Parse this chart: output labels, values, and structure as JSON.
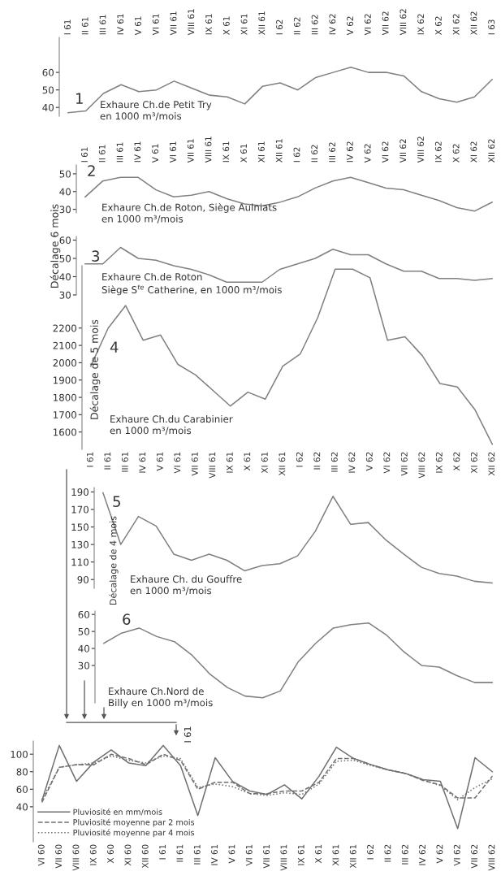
{
  "chart_data": [
    {
      "type": "line",
      "title": "Exhaure Ch.de Petit Try\nen 1000 m³/mois",
      "annotations": [
        "1"
      ],
      "categories": [
        "I 61",
        "II 61",
        "III 61",
        "IV 61",
        "V 61",
        "VI 61",
        "VII 61",
        "VIII 61",
        "IX 61",
        "X 61",
        "XI 61",
        "XII 61",
        "I 62",
        "II 62",
        "III 62",
        "IV 62",
        "V 62",
        "VI 62",
        "VII 62",
        "VIII 62",
        "IX 62",
        "X 62",
        "XI 62",
        "XII 62",
        "I 63"
      ],
      "series": [
        {
          "color": "#808080",
          "values": [
            37,
            38,
            48,
            53,
            49,
            50,
            55,
            51,
            47,
            46,
            42,
            52,
            54,
            50,
            57,
            60,
            63,
            60,
            60,
            58,
            49,
            45,
            43,
            46,
            56
          ]
        }
      ],
      "ylim": [
        35,
        80
      ],
      "yticks": [
        40,
        50,
        60
      ]
    },
    {
      "type": "line",
      "title": "Exhaure Ch.de Roton, Siège Aulniats\nen 1000 m³/mois",
      "annotations": [
        "2",
        "Décalage 6 mois"
      ],
      "categories": [
        "I 61",
        "II 61",
        "III 61",
        "IV 61",
        "V 61",
        "VI 61",
        "VII 61",
        "VIII 61",
        "IX 61",
        "X 61",
        "XI 61",
        "XII 61",
        "I 62",
        "II 62",
        "III 62",
        "IV 62",
        "V 62",
        "VI 62",
        "VII 62",
        "VIII 62",
        "IX 62",
        "X 62",
        "XI 62",
        "XII 62"
      ],
      "series": [
        {
          "color": "#808080",
          "values": [
            37,
            46,
            48,
            48,
            41,
            37,
            38,
            40,
            36,
            33,
            32,
            34,
            37,
            42,
            46,
            48,
            45,
            42,
            41,
            38,
            35,
            31,
            29,
            34
          ]
        }
      ],
      "ylim": [
        28,
        55
      ],
      "yticks": [
        30,
        40,
        50
      ]
    },
    {
      "type": "line",
      "title": "Exhaure Ch.de Roton\nSiège S$^{te}$ Catherine, en 1000 m³/mois",
      "annotations": [
        "3"
      ],
      "categories": [
        null,
        null,
        null,
        null,
        null,
        null,
        null,
        null,
        null,
        null,
        null,
        null,
        null,
        null,
        null,
        null,
        null,
        null,
        null,
        null,
        null,
        null,
        null,
        null
      ],
      "series": [
        {
          "color": "#808080",
          "values": [
            47,
            47,
            56,
            50,
            49,
            46,
            44,
            41,
            37,
            37,
            37,
            44,
            47,
            50,
            55,
            52,
            52,
            47,
            43,
            43,
            39,
            39,
            38,
            39
          ]
        }
      ],
      "ylim": [
        30,
        62
      ],
      "yticks": [
        30,
        40,
        50,
        60
      ],
      "tick_labels": "y"
    },
    {
      "type": "line",
      "title": "Exhaure Ch.du Carabinier\nen 1000 m³/mois",
      "annotations": [
        "4",
        "Décalage de 5 mois"
      ],
      "categories": [
        "I 61",
        "II 61",
        "III 61",
        "IV 61",
        "V 61",
        "VI 61",
        "VII 61",
        "VIII 61",
        "IX 61",
        "X 61",
        "XI 61",
        "XII 61",
        "I 62",
        "II 62",
        "III 62",
        "IV 62",
        "V 62",
        "VI 62",
        "VII 62",
        "VIII 62",
        "IX 62",
        "X 62",
        "XI 62",
        "XII 62"
      ],
      "series": [
        {
          "color": "#808080",
          "values": [
            1980,
            2200,
            2330,
            2130,
            2160,
            1990,
            1930,
            1840,
            1750,
            1830,
            1790,
            1980,
            2050,
            2260,
            2540,
            2540,
            2490,
            2130,
            2150,
            2040,
            1880,
            1860,
            1730,
            1530
          ]
        }
      ],
      "ylim": [
        1500,
        2560
      ],
      "yticks": [
        1600,
        1700,
        1800,
        1900,
        2000,
        2100,
        2200
      ]
    },
    {
      "type": "line",
      "title": "Exhaure Ch. du Gouffre\nen 1000 m³/mois",
      "annotations": [
        "5",
        "Décalage de 4 mois"
      ],
      "categories": [
        null,
        null,
        null,
        null,
        null,
        null,
        null,
        null,
        null,
        null,
        null,
        null,
        null,
        null,
        null,
        null,
        null,
        null,
        null,
        null,
        null,
        null,
        null
      ],
      "series": [
        {
          "color": "#808080",
          "values": [
            189,
            130,
            162,
            151,
            119,
            112,
            119,
            112,
            100,
            106,
            108,
            117,
            145,
            185,
            153,
            155,
            135,
            119,
            104,
            97,
            94,
            88,
            86
          ]
        }
      ],
      "ylim": [
        80,
        195
      ],
      "yticks": [
        90,
        110,
        130,
        150,
        170,
        190
      ],
      "tick_labels": "y"
    },
    {
      "type": "line",
      "title": "Exhaure Ch.Nord de\nBilly en 1000 m³/mois",
      "annotations": [
        "6"
      ],
      "categories": [
        null,
        null,
        null,
        null,
        null,
        null,
        null,
        null,
        null,
        null,
        null,
        null,
        null,
        null,
        null,
        null,
        null,
        null,
        null,
        null,
        null,
        null,
        null
      ],
      "series": [
        {
          "color": "#808080",
          "values": [
            43,
            49,
            52,
            47,
            44,
            36,
            25,
            17,
            12,
            11,
            15,
            32,
            43,
            52,
            54,
            55,
            48,
            38,
            30,
            29,
            24,
            20,
            20
          ]
        }
      ],
      "ylim": [
        8,
        62
      ],
      "yticks": [
        30,
        40,
        50,
        60
      ],
      "tick_labels": "y"
    },
    {
      "type": "line",
      "annotations": [
        "I 61"
      ],
      "legend": "bottom left",
      "categories": [
        "VI 60",
        "VII 60",
        "VIII 60",
        "IX 60",
        "X 60",
        "XI 60",
        "XII 60",
        "I 61",
        "II 61",
        "III 61",
        "IV 61",
        "V 61",
        "VI 61",
        "VII 61",
        "VIII 61",
        "IX 61",
        "X 61",
        "XI 61",
        "XII 61",
        "I 62",
        "II 62",
        "III 62",
        "IV 62",
        "V 62",
        "VI 62",
        "VII 62",
        "VIII 62"
      ],
      "series": [
        {
          "name": "Pluviosité en mm/mois",
          "color": "#707070",
          "line_style": "solid",
          "values": [
            47,
            110,
            69,
            91,
            105,
            90,
            87,
            110,
            87,
            30,
            96,
            69,
            58,
            54,
            65,
            49,
            75,
            108,
            95,
            88,
            82,
            78,
            71,
            69,
            15,
            96,
            80
          ]
        },
        {
          "name": "Pluviosité moyenne par 2 mois",
          "color": "#707070",
          "line_style": "dashed",
          "values": [
            45,
            85,
            88,
            88,
            100,
            95,
            88,
            100,
            93,
            60,
            68,
            68,
            55,
            55,
            58,
            58,
            68,
            95,
            95,
            88,
            82,
            78,
            70,
            65,
            50,
            50,
            75
          ]
        },
        {
          "name": "Pluviosité moyenne par 4 mois",
          "color": "#707070",
          "line_style": "dotted",
          "values": [
            48,
            85,
            88,
            90,
            98,
            93,
            90,
            98,
            95,
            62,
            66,
            63,
            55,
            53,
            56,
            54,
            66,
            92,
            93,
            87,
            82,
            78,
            71,
            64,
            48,
            62,
            72
          ]
        }
      ],
      "ylim": [
        0,
        115
      ],
      "yticks": [
        40,
        60,
        80,
        100
      ]
    }
  ]
}
